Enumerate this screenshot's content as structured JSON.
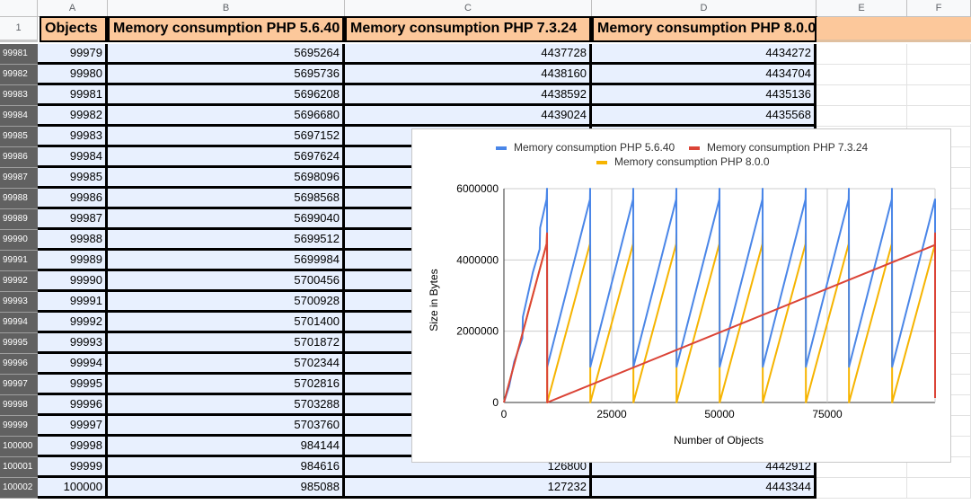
{
  "columns": [
    "",
    "A",
    "B",
    "C",
    "D",
    "E",
    "F"
  ],
  "header_row": {
    "row_number": "1",
    "cells": [
      "Objects",
      "Memory consumption PHP 5.6.40",
      "Memory consumption PHP 7.3.24",
      "Memory consumption PHP 8.0.0"
    ]
  },
  "rows": [
    {
      "n": "99981",
      "a": "99979",
      "b": "5695264",
      "c": "4437728",
      "d": "4434272"
    },
    {
      "n": "99982",
      "a": "99980",
      "b": "5695736",
      "c": "4438160",
      "d": "4434704"
    },
    {
      "n": "99983",
      "a": "99981",
      "b": "5696208",
      "c": "4438592",
      "d": "4435136"
    },
    {
      "n": "99984",
      "a": "99982",
      "b": "5696680",
      "c": "4439024",
      "d": "4435568"
    },
    {
      "n": "99985",
      "a": "99983",
      "b": "5697152",
      "c": "",
      "d": ""
    },
    {
      "n": "99986",
      "a": "99984",
      "b": "5697624",
      "c": "",
      "d": ""
    },
    {
      "n": "99987",
      "a": "99985",
      "b": "5698096",
      "c": "",
      "d": ""
    },
    {
      "n": "99988",
      "a": "99986",
      "b": "5698568",
      "c": "",
      "d": ""
    },
    {
      "n": "99989",
      "a": "99987",
      "b": "5699040",
      "c": "",
      "d": ""
    },
    {
      "n": "99990",
      "a": "99988",
      "b": "5699512",
      "c": "",
      "d": ""
    },
    {
      "n": "99991",
      "a": "99989",
      "b": "5699984",
      "c": "",
      "d": ""
    },
    {
      "n": "99992",
      "a": "99990",
      "b": "5700456",
      "c": "",
      "d": ""
    },
    {
      "n": "99993",
      "a": "99991",
      "b": "5700928",
      "c": "",
      "d": ""
    },
    {
      "n": "99994",
      "a": "99992",
      "b": "5701400",
      "c": "",
      "d": ""
    },
    {
      "n": "99995",
      "a": "99993",
      "b": "5701872",
      "c": "",
      "d": ""
    },
    {
      "n": "99996",
      "a": "99994",
      "b": "5702344",
      "c": "",
      "d": ""
    },
    {
      "n": "99997",
      "a": "99995",
      "b": "5702816",
      "c": "",
      "d": ""
    },
    {
      "n": "99998",
      "a": "99996",
      "b": "5703288",
      "c": "",
      "d": ""
    },
    {
      "n": "99999",
      "a": "99997",
      "b": "5703760",
      "c": "",
      "d": ""
    },
    {
      "n": "100000",
      "a": "99998",
      "b": "984144",
      "c": "",
      "d": ""
    },
    {
      "n": "100001",
      "a": "99999",
      "b": "984616",
      "c": "126800",
      "d": "4442912"
    },
    {
      "n": "100002",
      "a": "100000",
      "b": "985088",
      "c": "127232",
      "d": "4443344"
    }
  ],
  "chart_data": {
    "type": "line",
    "xlabel": "Number of Objects",
    "ylabel": "Size in Bytes",
    "xlim": [
      0,
      100000
    ],
    "ylim": [
      0,
      6000000
    ],
    "xticks": [
      "0",
      "25000",
      "50000",
      "75000"
    ],
    "xtick_values": [
      0,
      25000,
      50000,
      75000
    ],
    "yticks": [
      "0",
      "2000000",
      "4000000",
      "6000000"
    ],
    "ytick_values": [
      0,
      2000000,
      4000000,
      6000000
    ],
    "legend_position": "top",
    "series": [
      {
        "name": "Memory consumption PHP 5.6.40",
        "color": "#4a86e8",
        "points": [
          [
            0,
            0
          ],
          [
            1200,
            450000
          ],
          [
            2400,
            1150000
          ],
          [
            4300,
            1800000
          ],
          [
            4400,
            2400000
          ],
          [
            6700,
            3650000
          ],
          [
            8300,
            4300000
          ],
          [
            8400,
            4900000
          ],
          [
            9900,
            5700000
          ],
          [
            10000,
            6000000
          ],
          [
            10050,
            1000000
          ],
          [
            19950,
            5700000
          ],
          [
            20000,
            6000000
          ],
          [
            20050,
            1000000
          ],
          [
            29950,
            5700000
          ],
          [
            30000,
            6000000
          ],
          [
            30050,
            1000000
          ],
          [
            39950,
            5700000
          ],
          [
            40000,
            6000000
          ],
          [
            40050,
            1000000
          ],
          [
            49950,
            5700000
          ],
          [
            50000,
            6000000
          ],
          [
            50050,
            1000000
          ],
          [
            59950,
            5700000
          ],
          [
            60000,
            6000000
          ],
          [
            60050,
            1000000
          ],
          [
            69950,
            5700000
          ],
          [
            70000,
            6000000
          ],
          [
            70050,
            1000000
          ],
          [
            79950,
            5700000
          ],
          [
            80000,
            6000000
          ],
          [
            80050,
            1000000
          ],
          [
            89950,
            5700000
          ],
          [
            90000,
            6000000
          ],
          [
            90050,
            1000000
          ],
          [
            99998,
            5700000
          ],
          [
            100000,
            985088
          ]
        ]
      },
      {
        "name": "Memory consumption PHP 7.3.24",
        "color": "#db4437",
        "points": [
          [
            0,
            0
          ],
          [
            9900,
            4450000
          ],
          [
            10000,
            4750000
          ],
          [
            10050,
            0
          ],
          [
            99960,
            4420000
          ],
          [
            99990,
            4750000
          ],
          [
            99998,
            600000
          ],
          [
            100000,
            127232
          ]
        ]
      },
      {
        "name": "Memory consumption PHP 8.0.0",
        "color": "#f6b400",
        "points": [
          [
            0,
            0
          ],
          [
            9900,
            4450000
          ],
          [
            10000,
            4750000
          ],
          [
            10050,
            0
          ],
          [
            19950,
            4450000
          ],
          [
            20000,
            4750000
          ],
          [
            20050,
            0
          ],
          [
            29950,
            4450000
          ],
          [
            30000,
            4750000
          ],
          [
            30050,
            0
          ],
          [
            39950,
            4450000
          ],
          [
            40000,
            4750000
          ],
          [
            40050,
            0
          ],
          [
            49950,
            4450000
          ],
          [
            50000,
            4750000
          ],
          [
            50050,
            0
          ],
          [
            59950,
            4450000
          ],
          [
            60000,
            4750000
          ],
          [
            60050,
            0
          ],
          [
            69950,
            4450000
          ],
          [
            70000,
            4750000
          ],
          [
            70050,
            0
          ],
          [
            79950,
            4450000
          ],
          [
            80000,
            4750000
          ],
          [
            80050,
            0
          ],
          [
            89950,
            4450000
          ],
          [
            90000,
            4750000
          ],
          [
            90050,
            0
          ],
          [
            100000,
            4443344
          ]
        ]
      }
    ]
  }
}
